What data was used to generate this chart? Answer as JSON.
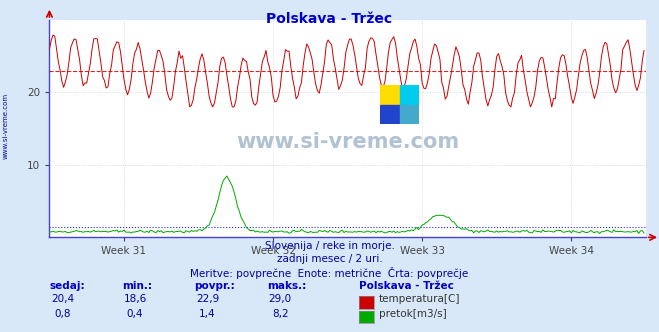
{
  "title": "Polskava - Tržec",
  "title_color": "#0000cc",
  "bg_color": "#d8e8f8",
  "plot_bg_color": "#ffffff",
  "grid_color": "#c8c8c8",
  "watermark_text": "www.si-vreme.com",
  "x_week_labels": [
    "Week 31",
    "Week 32",
    "Week 33",
    "Week 34"
  ],
  "y_ticks": [
    10,
    20
  ],
  "y_max": 30,
  "y_min": 0,
  "n_points": 336,
  "temp_min": 18.6,
  "temp_max": 29.0,
  "temp_avg": 22.9,
  "temp_current": 20.4,
  "flow_min": 0.4,
  "flow_max": 8.2,
  "flow_avg": 1.4,
  "flow_current": 0.8,
  "temp_color": "#cc0000",
  "flow_color": "#00aa00",
  "avg_line_color": "#cc0000",
  "flow_avg_color": "#0000cc",
  "subtitle1": "Slovenija / reke in morje.",
  "subtitle2": "zadnji mesec / 2 uri.",
  "subtitle3": "Meritve: povprečne  Enote: metrične  Črta: povprečje",
  "legend_title": "Polskava - Tržec",
  "legend_color": "#0000cc",
  "subtitle_color": "#0000aa",
  "table_header_color": "#0000cc",
  "table_value_color": "#0000aa",
  "left_label_text": "www.si-vreme.com",
  "left_label_color": "#0000aa",
  "vals_temp": [
    "20,4",
    "18,6",
    "22,9",
    "29,0"
  ],
  "vals_flow": [
    "0,8",
    "0,4",
    "1,4",
    "8,2"
  ],
  "headers": [
    "sedaj:",
    "min.:",
    "povpr.:",
    "maks.:"
  ],
  "legend_temp_label": "temperatura[C]",
  "legend_flow_label": "pretok[m3/s]"
}
